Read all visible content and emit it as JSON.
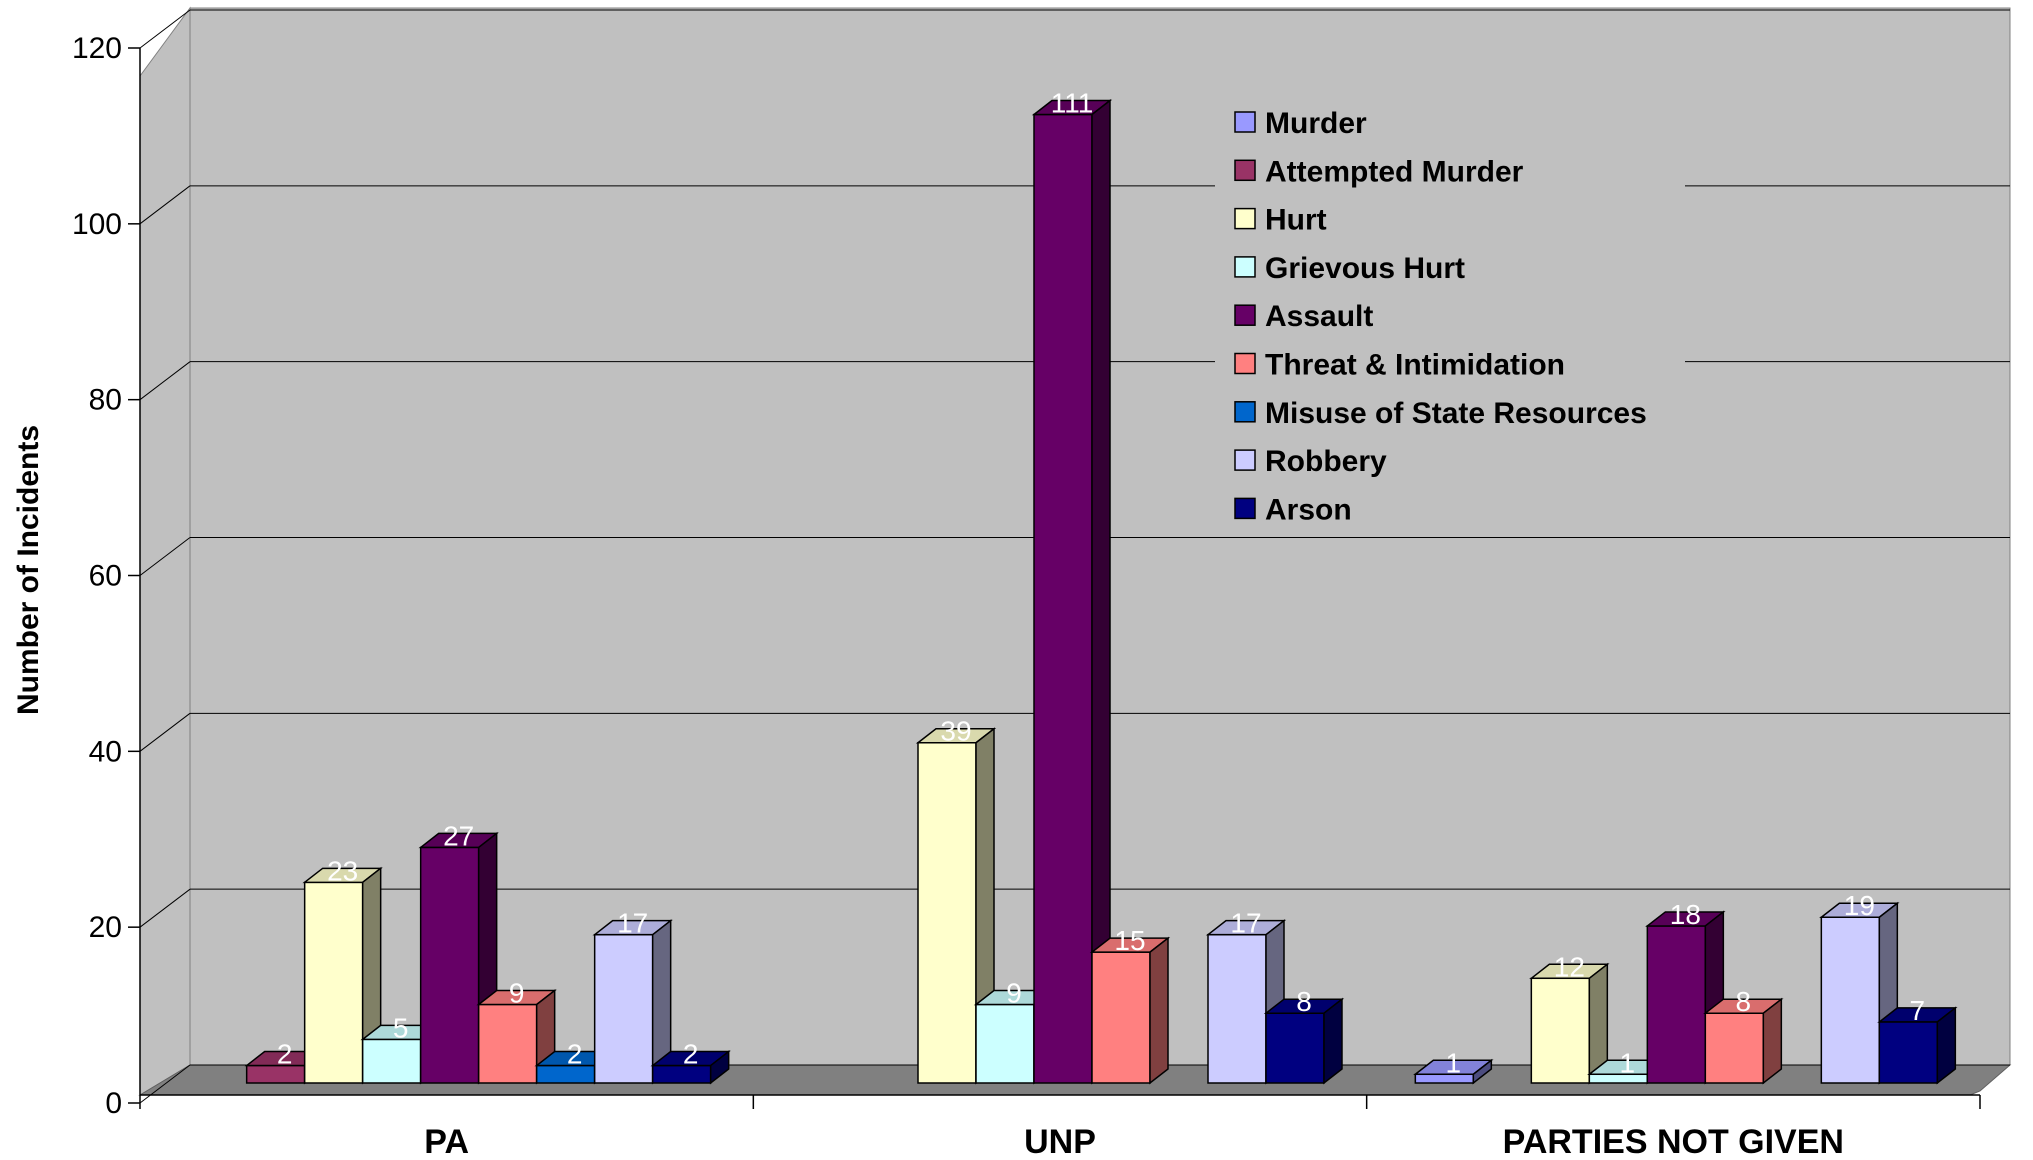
{
  "chart_data": {
    "type": "bar",
    "title": "",
    "xlabel": "",
    "ylabel": "Number of Incidents",
    "ylim": [
      0,
      120
    ],
    "yticks": [
      0,
      20,
      40,
      60,
      80,
      100,
      120
    ],
    "grid": true,
    "legend_position": "top-right",
    "categories": [
      "PA",
      "UNP",
      "PARTIES NOT GIVEN"
    ],
    "series": [
      {
        "name": "Murder",
        "color": "#9999ff",
        "values": [
          null,
          null,
          1
        ]
      },
      {
        "name": "Attempted Murder",
        "color": "#993366",
        "values": [
          2,
          null,
          null
        ]
      },
      {
        "name": "Hurt",
        "color": "#ffffcc",
        "values": [
          23,
          39,
          12
        ]
      },
      {
        "name": "Grievous Hurt",
        "color": "#ccffff",
        "values": [
          5,
          9,
          1
        ]
      },
      {
        "name": "Assault",
        "color": "#660066",
        "values": [
          27,
          111,
          18
        ]
      },
      {
        "name": "Threat & Intimidation",
        "color": "#ff8080",
        "values": [
          9,
          15,
          8
        ]
      },
      {
        "name": "Misuse of State Resources",
        "color": "#0066cc",
        "values": [
          2,
          null,
          null
        ]
      },
      {
        "name": "Robbery",
        "color": "#ccccff",
        "values": [
          17,
          17,
          19
        ]
      },
      {
        "name": "Arson",
        "color": "#000080",
        "values": [
          2,
          8,
          7
        ]
      }
    ]
  }
}
